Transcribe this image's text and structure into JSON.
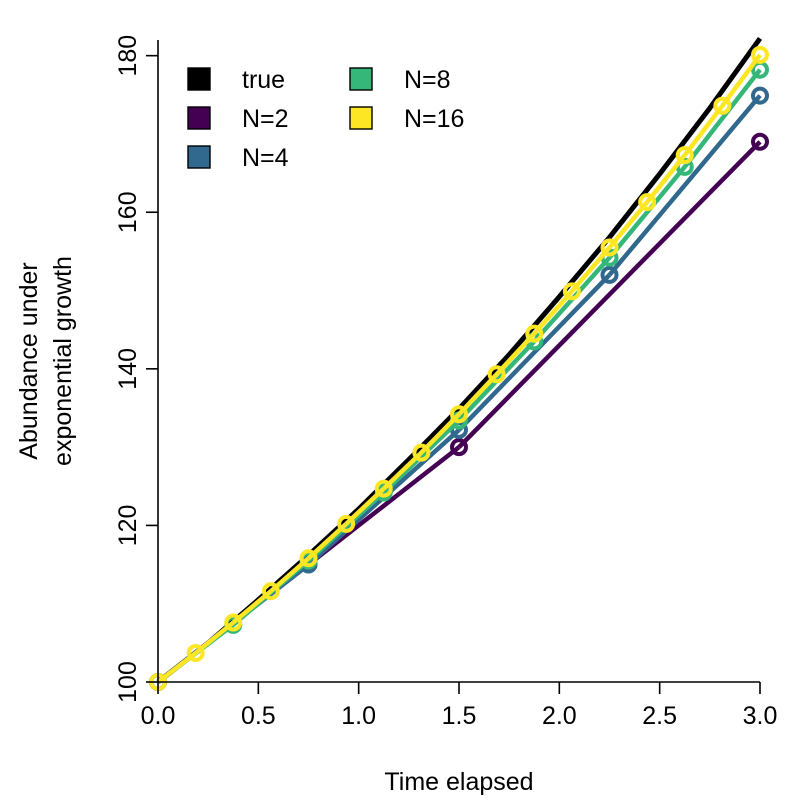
{
  "chart_data": {
    "type": "line",
    "title": "",
    "xlabel": "Time elapsed",
    "ylabel_lines": [
      "Abundance under",
      "exponential growth"
    ],
    "xlim": [
      0,
      3
    ],
    "ylim": [
      100,
      182
    ],
    "xticks": [
      0.0,
      0.5,
      1.0,
      1.5,
      2.0,
      2.5,
      3.0
    ],
    "xtick_labels": [
      "0.0",
      "0.5",
      "1.0",
      "1.5",
      "2.0",
      "2.5",
      "3.0"
    ],
    "yticks": [
      100,
      120,
      140,
      160,
      180
    ],
    "ytick_labels": [
      "100",
      "120",
      "140",
      "160",
      "180"
    ],
    "grid": false,
    "legend_position": "top-left",
    "colors": {
      "true": "#000000",
      "N=2": "#440154",
      "N=4": "#31688e",
      "N=8": "#35b779",
      "N=16": "#fde725"
    },
    "true_curve": {
      "name": "true",
      "x": [
        0,
        0.25,
        0.5,
        0.75,
        1.0,
        1.25,
        1.5,
        1.75,
        2.0,
        2.25,
        2.5,
        2.75,
        3.0
      ],
      "y": [
        100,
        105.0,
        110.5,
        116.2,
        122.1,
        128.4,
        134.9,
        141.8,
        149.2,
        156.8,
        164.9,
        173.3,
        182.2
      ]
    },
    "series": [
      {
        "name": "N=2",
        "segments": [
          {
            "x": [
              0,
              1.5
            ],
            "y": [
              100,
              130
            ]
          },
          {
            "x": [
              1.5,
              3.0
            ],
            "y": [
              130,
              169
            ]
          }
        ],
        "points": {
          "x": [
            0,
            1.5,
            3.0
          ],
          "y": [
            100,
            130,
            169
          ]
        }
      },
      {
        "name": "N=4",
        "segments": [
          {
            "x": [
              0,
              0.75
            ],
            "y": [
              100,
              115
            ]
          },
          {
            "x": [
              0.75,
              1.5
            ],
            "y": [
              115,
              132.2
            ]
          },
          {
            "x": [
              1.5,
              2.25
            ],
            "y": [
              132.2,
              152
            ]
          },
          {
            "x": [
              2.25,
              3.0
            ],
            "y": [
              152,
              174.9
            ]
          }
        ],
        "points": {
          "x": [
            0,
            0.75,
            1.5,
            2.25,
            3.0
          ],
          "y": [
            100,
            115,
            132.2,
            152,
            174.9
          ]
        }
      },
      {
        "name": "N=8",
        "segments": [
          {
            "x": [
              0,
              0.375
            ],
            "y": [
              100,
              107.3
            ]
          },
          {
            "x": [
              0.375,
              0.75
            ],
            "y": [
              107.3,
              115.5
            ]
          },
          {
            "x": [
              0.75,
              1.125
            ],
            "y": [
              115.5,
              124.2
            ]
          },
          {
            "x": [
              1.125,
              1.5
            ],
            "y": [
              124.2,
              133.4
            ]
          },
          {
            "x": [
              1.5,
              1.875
            ],
            "y": [
              133.4,
              143.5
            ]
          },
          {
            "x": [
              1.875,
              2.25
            ],
            "y": [
              143.5,
              154.2
            ]
          },
          {
            "x": [
              2.25,
              2.625
            ],
            "y": [
              154.2,
              165.8
            ]
          },
          {
            "x": [
              2.625,
              3.0
            ],
            "y": [
              165.8,
              178.2
            ]
          }
        ],
        "points": {
          "x": [
            0,
            0.375,
            0.75,
            1.125,
            1.5,
            1.875,
            2.25,
            2.625,
            3.0
          ],
          "y": [
            100,
            107.3,
            115.5,
            124.2,
            133.4,
            143.5,
            154.2,
            165.8,
            178.2
          ]
        }
      },
      {
        "name": "N=16",
        "segments": [
          {
            "x": [
              0,
              0.1875
            ],
            "y": [
              100,
              103.7
            ]
          },
          {
            "x": [
              0.1875,
              0.375
            ],
            "y": [
              103.7,
              107.6
            ]
          },
          {
            "x": [
              0.375,
              0.5625
            ],
            "y": [
              107.6,
              111.6
            ]
          },
          {
            "x": [
              0.5625,
              0.75
            ],
            "y": [
              111.6,
              115.8
            ]
          },
          {
            "x": [
              0.75,
              0.9375
            ],
            "y": [
              115.8,
              120.2
            ]
          },
          {
            "x": [
              0.9375,
              1.125
            ],
            "y": [
              120.2,
              124.7
            ]
          },
          {
            "x": [
              1.125,
              1.3125
            ],
            "y": [
              124.7,
              129.3
            ]
          },
          {
            "x": [
              1.3125,
              1.5
            ],
            "y": [
              129.3,
              134.2
            ]
          },
          {
            "x": [
              1.5,
              1.6875
            ],
            "y": [
              134.2,
              139.3
            ]
          },
          {
            "x": [
              1.6875,
              1.875
            ],
            "y": [
              139.3,
              144.5
            ]
          },
          {
            "x": [
              1.875,
              2.0625
            ],
            "y": [
              144.5,
              149.9
            ]
          },
          {
            "x": [
              2.0625,
              2.25
            ],
            "y": [
              149.9,
              155.5
            ]
          },
          {
            "x": [
              2.25,
              2.4375
            ],
            "y": [
              155.5,
              161.3
            ]
          },
          {
            "x": [
              2.4375,
              2.625
            ],
            "y": [
              161.3,
              167.3
            ]
          },
          {
            "x": [
              2.625,
              2.8125
            ],
            "y": [
              167.3,
              173.6
            ]
          },
          {
            "x": [
              2.8125,
              3.0
            ],
            "y": [
              173.6,
              180.1
            ]
          }
        ],
        "points": {
          "x": [
            0,
            0.1875,
            0.375,
            0.5625,
            0.75,
            0.9375,
            1.125,
            1.3125,
            1.5,
            1.6875,
            1.875,
            2.0625,
            2.25,
            2.4375,
            2.625,
            2.8125,
            3.0
          ],
          "y": [
            100,
            103.7,
            107.6,
            111.6,
            115.8,
            120.2,
            124.7,
            129.3,
            134.2,
            139.3,
            144.5,
            149.9,
            155.5,
            161.3,
            167.3,
            173.6,
            180.1
          ]
        }
      }
    ],
    "legend": [
      {
        "label": "true",
        "color_key": "true"
      },
      {
        "label": "N=2",
        "color_key": "N=2"
      },
      {
        "label": "N=4",
        "color_key": "N=4"
      },
      {
        "label": "N=8",
        "color_key": "N=8"
      },
      {
        "label": "N=16",
        "color_key": "N=16"
      }
    ]
  }
}
